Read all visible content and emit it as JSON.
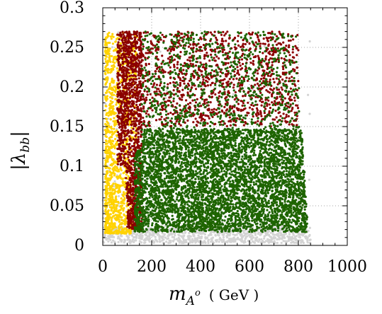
{
  "chart_data": {
    "type": "scatter",
    "title": "",
    "xlabel": {
      "symbol": "m",
      "subscript": "A",
      "superscript": "o",
      "unit": "( GeV )"
    },
    "ylabel": "|λbb|",
    "ylabel_display": {
      "open": "|λ",
      "subscript": "bb",
      "close": "|"
    },
    "xlim": [
      0,
      1000
    ],
    "ylim": [
      0,
      0.3
    ],
    "x_ticks": [
      0,
      200,
      400,
      600,
      800,
      1000
    ],
    "x_tick_labels": [
      "0",
      "200",
      "400",
      "600",
      "800",
      "1000"
    ],
    "y_ticks": [
      0,
      0.05,
      0.1,
      0.15,
      0.2,
      0.25,
      0.3
    ],
    "y_tick_labels": [
      "0",
      "0.05",
      "0.1",
      "0.15",
      "0.2",
      "0.25",
      "0.3"
    ],
    "grid": true,
    "grid_style": "dotted",
    "legend": "none",
    "series": [
      {
        "color": "#d3d3d3",
        "regions": [
          {
            "x": [
              0,
              850
            ],
            "y_lower": [
              0.002,
              0.012
            ],
            "y_upper": [
              0.27,
              0.27
            ],
            "density": "sparse-upper-dense-lower"
          }
        ],
        "description_x_range": [
          0,
          850
        ],
        "description_y_range": [
          0.002,
          0.27
        ]
      },
      {
        "color": "#ffd200",
        "regions": [
          {
            "x": [
              10,
              140
            ],
            "y": [
              0.015,
              0.27
            ]
          }
        ],
        "description_x_range": [
          10,
          140
        ],
        "description_y_range": [
          0.015,
          0.27
        ]
      },
      {
        "color": "#8b0000",
        "regions": [
          {
            "x": [
              60,
              800
            ],
            "y": [
              0.02,
              0.27
            ]
          }
        ],
        "description_x_range": [
          60,
          800
        ],
        "description_y_range": [
          0.02,
          0.27
        ]
      },
      {
        "color": "#1e6400",
        "regions": [
          {
            "x": [
              130,
              840
            ],
            "y": [
              0.017,
              0.27
            ]
          }
        ],
        "description_x_range": [
          130,
          840
        ],
        "description_y_range": [
          0.017,
          0.27
        ]
      }
    ]
  }
}
